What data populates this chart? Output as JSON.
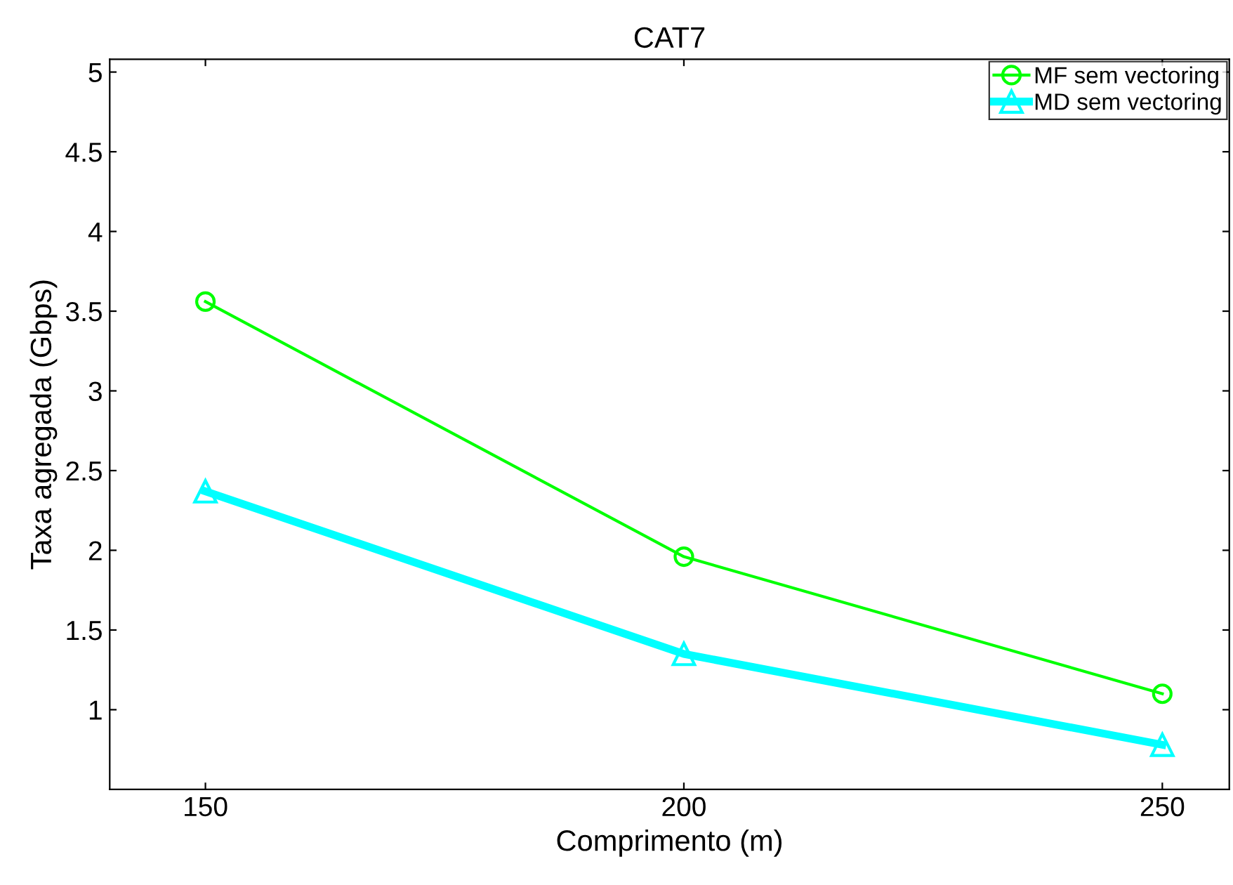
{
  "chart_data": {
    "type": "line",
    "title": "CAT7",
    "xlabel": "Comprimento (m)",
    "ylabel": "Taxa agregada (Gbps)",
    "x": [
      150,
      200,
      250
    ],
    "series": [
      {
        "name": "MF sem vectoring",
        "color": "#00ff00",
        "marker": "circle",
        "values": [
          3.56,
          1.96,
          1.1
        ]
      },
      {
        "name": "MD sem vectoring",
        "color": "#00ffff",
        "marker": "triangle",
        "values": [
          2.37,
          1.35,
          0.78
        ]
      }
    ],
    "xlim": [
      140,
      257
    ],
    "xticks": [
      150,
      200,
      250
    ],
    "ylim": [
      0.5,
      5.08
    ],
    "yticks": [
      1,
      1.5,
      2,
      2.5,
      3,
      3.5,
      4,
      4.5,
      5
    ],
    "grid": false,
    "legend": "top right",
    "line_style": "solid"
  }
}
